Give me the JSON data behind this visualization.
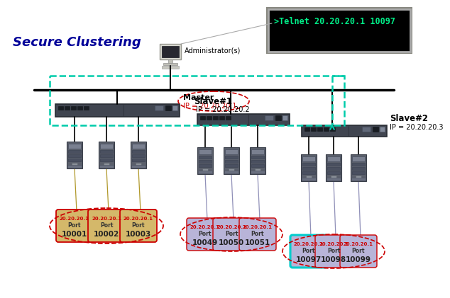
{
  "title": "Secure Clustering",
  "bg_color": "#e8e8e8",
  "terminal_bg": "#000000",
  "terminal_text": ">Telnet 20.20.20.1 10097",
  "terminal_text_color": "#00ee88",
  "admin_label": "Administrator(s)",
  "master_label": "Master",
  "master_ip": "IP = 20.20.20.1",
  "slave1_label": "Slave#1",
  "slave1_ip": "IP = 20.20.20.2",
  "slave2_label": "Slave#2",
  "slave2_ip": "IP = 20.20.20.3",
  "master_ports": [
    [
      "20.20.20.1",
      "Port",
      "10001"
    ],
    [
      "20.20.20.1",
      "Port",
      "10002"
    ],
    [
      "20.20.20.1",
      "Port",
      "10003"
    ]
  ],
  "slave1_ports": [
    [
      "20.20.20.1",
      "Port",
      "10049"
    ],
    [
      "20.20.20.1",
      "Port",
      "10050"
    ],
    [
      "20.20.20.1",
      "Port",
      "10051"
    ]
  ],
  "slave2_ports": [
    [
      "20.20.20.1",
      "Port",
      "10097"
    ],
    [
      "20.20.20.1",
      "Port",
      "10098"
    ],
    [
      "20.20.20.1",
      "Port",
      "10099"
    ]
  ],
  "master_port_bg": "#d4b86a",
  "slave1_port_bg": "#b8b4d8",
  "slave2_port_bg": "#b8b4d8",
  "highlight_port_index": 0,
  "highlight_port_ec": "#00cccc",
  "normal_port_ec": "#cc0000",
  "ellipse_color": "#cc0000",
  "teal_dash": "#00ccaa",
  "teal_arrow": "#00aa88"
}
